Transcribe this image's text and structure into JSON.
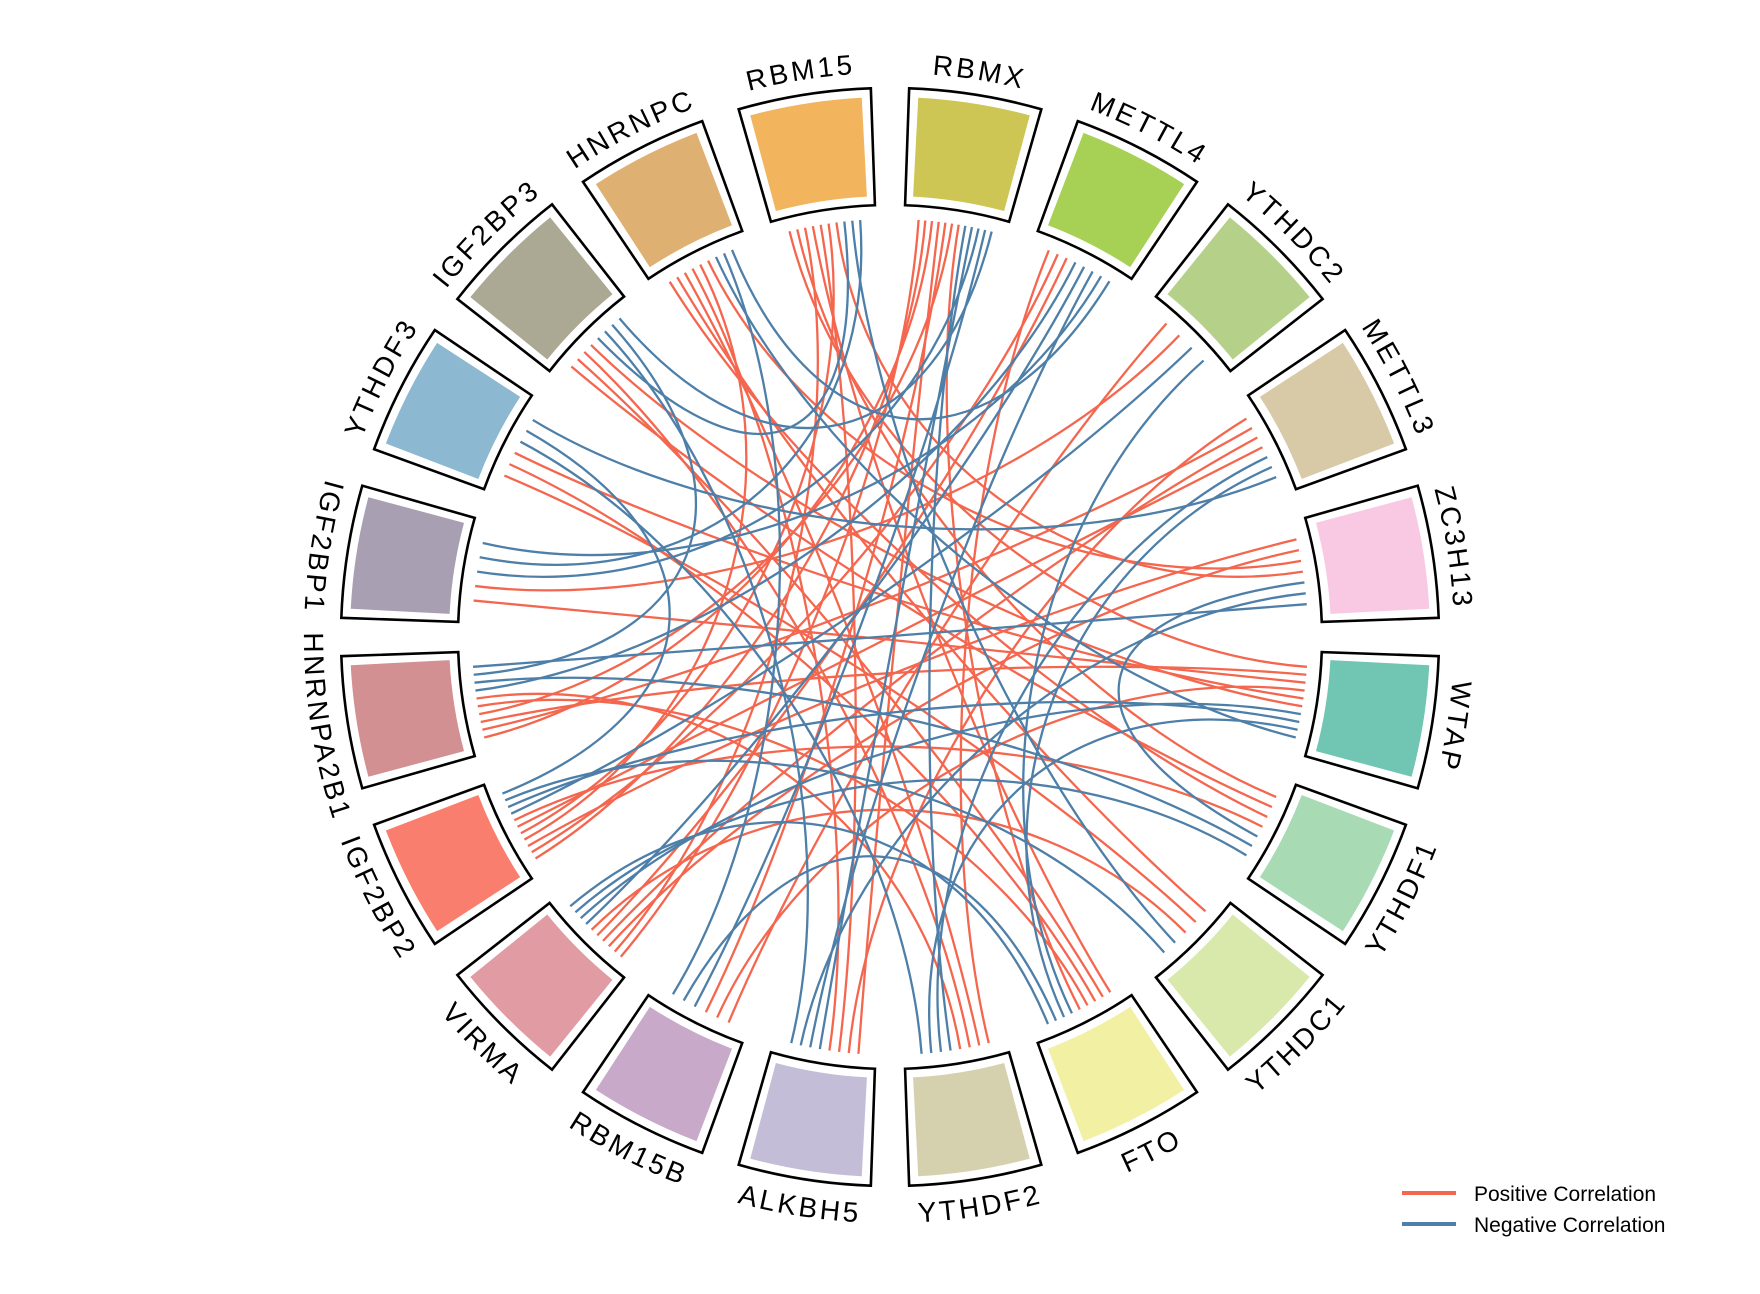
{
  "chart_data": {
    "type": "chord",
    "title": "",
    "genes": [
      {
        "name": "RBMX",
        "color": "#cdc554"
      },
      {
        "name": "METTL4",
        "color": "#a6d154"
      },
      {
        "name": "YTHDC2",
        "color": "#b5d189"
      },
      {
        "name": "METTL3",
        "color": "#d8caa6"
      },
      {
        "name": "ZC3H13",
        "color": "#f9c9e4"
      },
      {
        "name": "WTAP",
        "color": "#70c6b2"
      },
      {
        "name": "YTHDF1",
        "color": "#a8dbb4"
      },
      {
        "name": "YTHDC1",
        "color": "#d9e9ab"
      },
      {
        "name": "FTO",
        "color": "#f2f0a2"
      },
      {
        "name": "YTHDF2",
        "color": "#d5d1ae"
      },
      {
        "name": "ALKBH5",
        "color": "#c4bdd7"
      },
      {
        "name": "RBM15B",
        "color": "#c8a9ca"
      },
      {
        "name": "VIRMA",
        "color": "#e09ba3"
      },
      {
        "name": "IGF2BP2",
        "color": "#f97e6d"
      },
      {
        "name": "HNRNPA2B1",
        "color": "#d39093"
      },
      {
        "name": "IGF2BP1",
        "color": "#a8a0b2"
      },
      {
        "name": "YTHDF3",
        "color": "#8cb8d1"
      },
      {
        "name": "IGF2BP3",
        "color": "#aba893"
      },
      {
        "name": "HNRNPC",
        "color": "#deb072"
      },
      {
        "name": "RBM15",
        "color": "#f2b45c"
      }
    ],
    "links": [
      [
        "RBMX",
        "VIRMA",
        "pos"
      ],
      [
        "RBMX",
        "IGF2BP2",
        "pos"
      ],
      [
        "RBMX",
        "HNRNPA2B1",
        "pos"
      ],
      [
        "RBMX",
        "ALKBH5",
        "pos"
      ],
      [
        "RBM15",
        "WTAP",
        "pos"
      ],
      [
        "RBM15",
        "YTHDF1",
        "pos"
      ],
      [
        "RBM15",
        "VIRMA",
        "pos"
      ],
      [
        "RBM15",
        "FTO",
        "pos"
      ],
      [
        "METTL4",
        "YTHDF2",
        "pos"
      ],
      [
        "METTL4",
        "IGF2BP2",
        "pos"
      ],
      [
        "YTHDC2",
        "RBM15B",
        "pos"
      ],
      [
        "METTL3",
        "ALKBH5",
        "pos"
      ],
      [
        "METTL3",
        "HNRNPA2B1",
        "pos"
      ],
      [
        "ZC3H13",
        "IGF2BP2",
        "pos"
      ],
      [
        "ZC3H13",
        "VIRMA",
        "pos"
      ],
      [
        "WTAP",
        "HNRNPA2B1",
        "pos"
      ],
      [
        "WTAP",
        "IGF2BP1",
        "pos"
      ],
      [
        "WTAP",
        "RBM15B",
        "pos"
      ],
      [
        "YTHDF1",
        "IGF2BP3",
        "pos"
      ],
      [
        "YTHDF1",
        "HNRNPC",
        "pos"
      ],
      [
        "YTHDC1",
        "HNRNPC",
        "pos"
      ],
      [
        "YTHDC1",
        "YTHDF3",
        "pos"
      ],
      [
        "FTO",
        "IGF2BP3",
        "pos"
      ],
      [
        "FTO",
        "YTHDF3",
        "pos"
      ],
      [
        "YTHDF2",
        "HNRNPC",
        "pos"
      ],
      [
        "YTHDF2",
        "IGF2BP3",
        "pos"
      ],
      [
        "ALKBH5",
        "RBM15",
        "pos"
      ],
      [
        "ALKBH5",
        "HNRNPC",
        "pos"
      ],
      [
        "RBM15B",
        "RBMX",
        "pos"
      ],
      [
        "VIRMA",
        "METTL3",
        "pos"
      ],
      [
        "VIRMA",
        "METTL4",
        "pos"
      ],
      [
        "VIRMA",
        "YTHDC1",
        "pos"
      ],
      [
        "IGF2BP2",
        "HNRNPC",
        "pos"
      ],
      [
        "IGF2BP2",
        "RBM15",
        "pos"
      ],
      [
        "IGF2BP2",
        "METTL3",
        "pos"
      ],
      [
        "IGF2BP2",
        "YTHDF1",
        "pos"
      ],
      [
        "HNRNPA2B1",
        "RBMX",
        "pos"
      ],
      [
        "HNRNPA2B1",
        "FTO",
        "pos"
      ],
      [
        "HNRNPA2B1",
        "YTHDF2",
        "pos"
      ],
      [
        "IGF2BP1",
        "YTHDC2",
        "pos"
      ],
      [
        "YTHDF3",
        "WTAP",
        "pos"
      ],
      [
        "IGF2BP3",
        "WTAP",
        "pos"
      ],
      [
        "HNRNPC",
        "ZC3H13",
        "pos"
      ],
      [
        "RBM15",
        "ZC3H13",
        "pos"
      ],
      [
        "RBMX",
        "FTO",
        "pos"
      ],
      [
        "RBMX",
        "YTHDF2",
        "neg"
      ],
      [
        "RBMX",
        "ALKBH5",
        "neg"
      ],
      [
        "RBMX",
        "IGF2BP1",
        "neg"
      ],
      [
        "RBMX",
        "RBM15B",
        "neg"
      ],
      [
        "RBM15",
        "IGF2BP3",
        "neg"
      ],
      [
        "RBM15",
        "YTHDC1",
        "neg"
      ],
      [
        "METTL4",
        "HNRNPA2B1",
        "neg"
      ],
      [
        "METTL4",
        "VIRMA",
        "neg"
      ],
      [
        "METTL4",
        "ALKBH5",
        "neg"
      ],
      [
        "YTHDC2",
        "IGF2BP2",
        "neg"
      ],
      [
        "YTHDC2",
        "FTO",
        "neg"
      ],
      [
        "METTL3",
        "YTHDF2",
        "neg"
      ],
      [
        "METTL3",
        "FTO",
        "neg"
      ],
      [
        "ZC3H13",
        "YTHDF1",
        "neg"
      ],
      [
        "ZC3H13",
        "ALKBH5",
        "neg"
      ],
      [
        "WTAP",
        "VIRMA",
        "neg"
      ],
      [
        "WTAP",
        "IGF2BP2",
        "neg"
      ],
      [
        "WTAP",
        "YTHDF2",
        "neg"
      ],
      [
        "WTAP",
        "HNRNPC",
        "neg"
      ],
      [
        "YTHDF1",
        "HNRNPA2B1",
        "neg"
      ],
      [
        "YTHDF1",
        "VIRMA",
        "neg"
      ],
      [
        "YTHDC1",
        "IGF2BP2",
        "neg"
      ],
      [
        "FTO",
        "RBM15B",
        "neg"
      ],
      [
        "YTHDF2",
        "YTHDF3",
        "neg"
      ],
      [
        "ALKBH5",
        "IGF2BP3",
        "neg"
      ],
      [
        "RBM15B",
        "HNRNPC",
        "neg"
      ],
      [
        "VIRMA",
        "FTO",
        "neg"
      ],
      [
        "IGF2BP2",
        "YTHDF3",
        "neg"
      ],
      [
        "HNRNPA2B1",
        "IGF2BP3",
        "neg"
      ],
      [
        "HNRNPA2B1",
        "ZC3H13",
        "neg"
      ],
      [
        "IGF2BP1",
        "RBM15",
        "neg"
      ],
      [
        "IGF2BP1",
        "METTL4",
        "neg"
      ],
      [
        "YTHDF3",
        "METTL3",
        "neg"
      ],
      [
        "IGF2BP3",
        "RBMX",
        "neg"
      ],
      [
        "HNRNPC",
        "METTL4",
        "neg"
      ]
    ],
    "legend": {
      "positive": {
        "label": "Positive Correlation",
        "color": "#f4664e"
      },
      "negative": {
        "label": "Negative Correlation",
        "color": "#4d7fa8"
      }
    },
    "layout_hints": {
      "legend_position": "bottom-right",
      "segment_outline_color": "#000000"
    }
  }
}
